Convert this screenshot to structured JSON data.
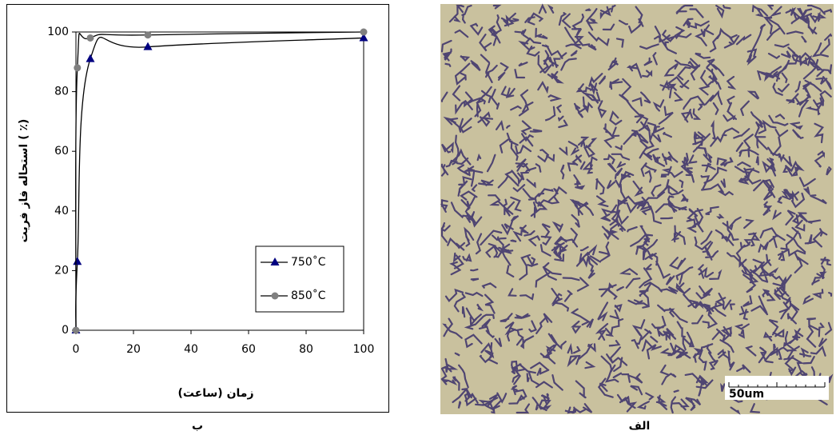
{
  "chart_data": {
    "type": "line",
    "x_label": "زمان (ساعت)",
    "y_label": "استحاله فاز فریت ( ٪)",
    "x": [
      0,
      0.5,
      5,
      25,
      100
    ],
    "series": [
      {
        "name": "750˚C",
        "color": "#000080",
        "marker": "triangle",
        "values": [
          0,
          23,
          91,
          95,
          98
        ]
      },
      {
        "name": "850˚C",
        "color": "#808080",
        "marker": "circle",
        "values": [
          0,
          88,
          98,
          99,
          100
        ]
      }
    ],
    "xlim": [
      0,
      100
    ],
    "xticks": [
      0,
      20,
      40,
      60,
      80,
      100
    ],
    "ylim": [
      0,
      100
    ],
    "yticks": [
      0,
      20,
      40,
      60,
      80,
      100
    ],
    "grid": false,
    "legend": "lower right"
  },
  "figure": {
    "captions": {
      "chart": "ب",
      "micrograph": "الف"
    },
    "scale_bar": "50um"
  }
}
